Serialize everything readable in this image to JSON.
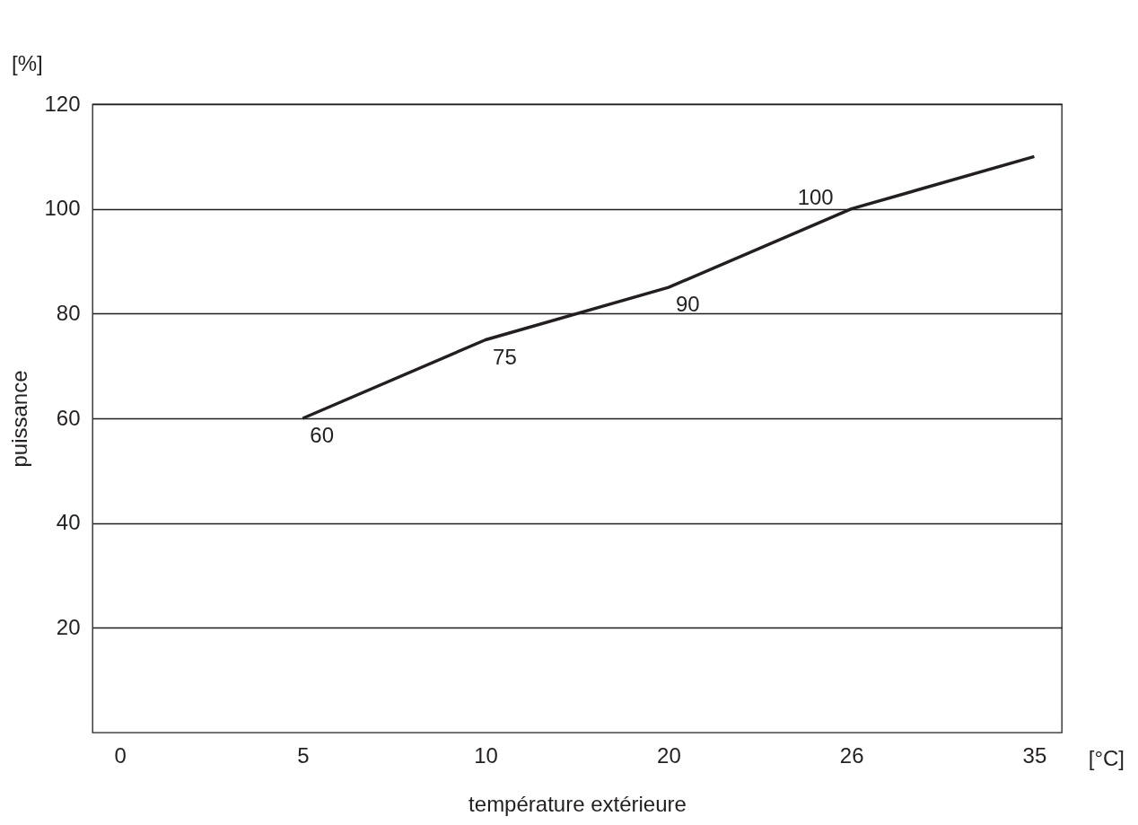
{
  "chart_data": {
    "type": "line",
    "xlabel": "température extérieure",
    "ylabel": "puissance",
    "categories": [
      "0",
      "5",
      "10",
      "20",
      "26",
      "35"
    ],
    "series": [
      {
        "color": "#231f20",
        "values": [
          null,
          60,
          75,
          85,
          100,
          110
        ]
      }
    ],
    "ylim": [
      0,
      120
    ],
    "yticks": [
      20,
      40,
      60,
      80,
      100,
      120
    ],
    "grid": "y",
    "marker": "none",
    "line_style": "solid",
    "annotations": [
      "[%]",
      "[°C]",
      {
        "text": "60",
        "x": "5",
        "y": 60
      },
      {
        "text": "75",
        "x": "10",
        "y": 75
      },
      {
        "text": "90",
        "x": "20",
        "y": 85
      },
      {
        "text": "100",
        "x": "26",
        "y": 100
      }
    ]
  }
}
